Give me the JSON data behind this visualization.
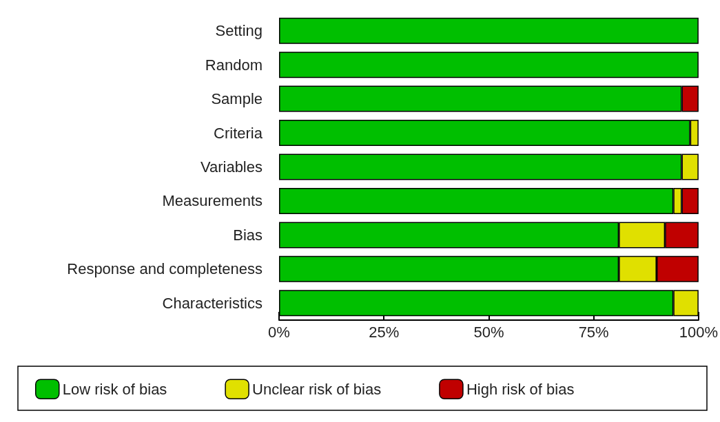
{
  "chart_data": {
    "type": "bar",
    "orientation": "horizontal",
    "stacked": true,
    "categories": [
      "Setting",
      "Random",
      "Sample",
      "Criteria",
      "Variables",
      "Measurements",
      "Bias",
      "Response and completeness",
      "Characteristics"
    ],
    "series": [
      {
        "name": "Low risk of bias",
        "color": "#00bf00",
        "values": [
          100,
          100,
          96,
          98,
          96,
          94,
          81,
          81,
          94
        ]
      },
      {
        "name": "Unclear risk of bias",
        "color": "#e0e000",
        "values": [
          0,
          0,
          0,
          2,
          4,
          2,
          11,
          9,
          6
        ]
      },
      {
        "name": "High risk of bias",
        "color": "#c00000",
        "values": [
          0,
          0,
          4,
          0,
          0,
          4,
          8,
          10,
          0
        ]
      }
    ],
    "xlim": [
      0,
      100
    ],
    "xticks": [
      {
        "value": 0,
        "label": "0%"
      },
      {
        "value": 25,
        "label": "25%"
      },
      {
        "value": 50,
        "label": "50%"
      },
      {
        "value": 75,
        "label": "75%"
      },
      {
        "value": 100,
        "label": "100%"
      }
    ],
    "grid": false,
    "legend": "bottom"
  }
}
